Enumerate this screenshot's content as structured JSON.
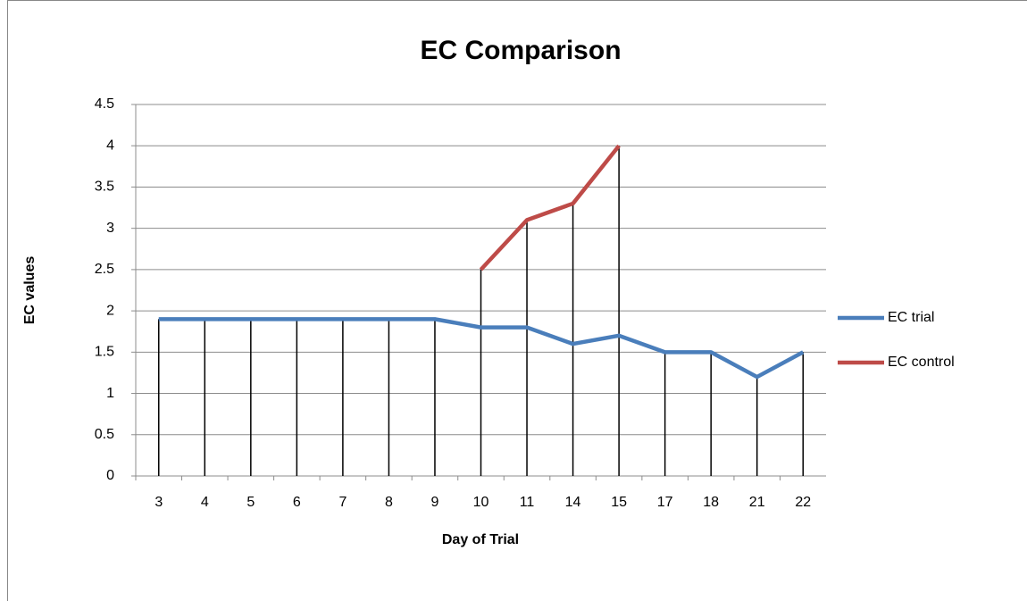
{
  "chart_data": {
    "type": "line",
    "title": "EC Comparison",
    "x_label": "Day of Trial",
    "y_label": "EC values",
    "categories": [
      "3",
      "4",
      "5",
      "6",
      "7",
      "8",
      "9",
      "10",
      "11",
      "14",
      "15",
      "17",
      "18",
      "21",
      "22"
    ],
    "series": [
      {
        "name": "EC trial",
        "color": "#4a7ebb",
        "values": [
          1.9,
          1.9,
          1.9,
          1.9,
          1.9,
          1.9,
          1.9,
          1.8,
          1.8,
          1.6,
          1.7,
          1.5,
          1.5,
          1.2,
          1.5
        ]
      },
      {
        "name": "EC control",
        "color": "#be4b48",
        "values": [
          null,
          null,
          null,
          null,
          null,
          null,
          null,
          2.5,
          3.1,
          3.3,
          4.0,
          null,
          null,
          null,
          null
        ]
      }
    ],
    "ylim": [
      0,
      4.5
    ],
    "yticks": [
      0,
      0.5,
      1,
      1.5,
      2,
      2.5,
      3,
      3.5,
      4,
      4.5
    ],
    "grid": true,
    "drop_lines": true,
    "legend": "right"
  }
}
